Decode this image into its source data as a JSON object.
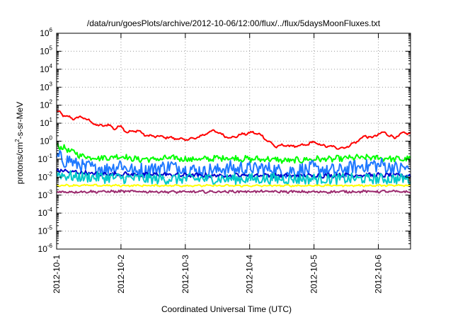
{
  "chart_data": {
    "type": "line",
    "title": "/data/run/goesPlots/archive/2012-10-06/12:00/flux/../flux/5daysMoonFluxes.txt",
    "xlabel": "Coordinated Universal Time (UTC)",
    "ylabel": {
      "base": "protons/cm",
      "sup": "2",
      "rest": "-s-sr-MeV"
    },
    "x_unit": "days since 2012-10-01",
    "xlim": [
      0,
      5.5
    ],
    "x_ticks": [
      {
        "value": 0,
        "label": "2012-10-1"
      },
      {
        "value": 1,
        "label": "2012-10-2"
      },
      {
        "value": 2,
        "label": "2012-10-3"
      },
      {
        "value": 3,
        "label": "2012-10-4"
      },
      {
        "value": 4,
        "label": "2012-10-5"
      },
      {
        "value": 5,
        "label": "2012-10-6"
      }
    ],
    "y_scale": "log",
    "ylim_exp": [
      -6,
      6
    ],
    "y_ticks": [
      {
        "base": "10",
        "exp": "6"
      },
      {
        "base": "10",
        "exp": "5"
      },
      {
        "base": "10",
        "exp": "4"
      },
      {
        "base": "10",
        "exp": "3"
      },
      {
        "base": "10",
        "exp": "2"
      },
      {
        "base": "10",
        "exp": "1"
      },
      {
        "base": "10",
        "exp": "0"
      },
      {
        "base": "10",
        "exp": "-1"
      },
      {
        "base": "10",
        "exp": "-2"
      },
      {
        "base": "10",
        "exp": "-3"
      },
      {
        "base": "10",
        "exp": "-4"
      },
      {
        "base": "10",
        "exp": "-5"
      },
      {
        "base": "10",
        "exp": "-6"
      }
    ],
    "grid": true,
    "series": [
      {
        "color": "#ff0000",
        "noise": 0.05,
        "amp": 0.1,
        "points": [
          [
            0,
            50
          ],
          [
            0.1,
            28
          ],
          [
            0.25,
            18
          ],
          [
            0.4,
            22
          ],
          [
            0.5,
            14
          ],
          [
            0.65,
            7
          ],
          [
            0.8,
            8
          ],
          [
            0.9,
            5
          ],
          [
            1.0,
            7
          ],
          [
            1.1,
            3
          ],
          [
            1.25,
            4
          ],
          [
            1.4,
            2
          ],
          [
            1.6,
            1.8
          ],
          [
            1.8,
            1.5
          ],
          [
            2.0,
            1.2
          ],
          [
            2.2,
            1.6
          ],
          [
            2.35,
            3
          ],
          [
            2.45,
            4
          ],
          [
            2.5,
            3
          ],
          [
            2.7,
            1.5
          ],
          [
            2.9,
            2.5
          ],
          [
            3.05,
            3
          ],
          [
            3.15,
            2.5
          ],
          [
            3.25,
            1.3
          ],
          [
            3.4,
            0.5
          ],
          [
            3.55,
            0.6
          ],
          [
            3.7,
            0.5
          ],
          [
            3.85,
            0.6
          ],
          [
            4.0,
            0.9
          ],
          [
            4.1,
            0.6
          ],
          [
            4.25,
            0.5
          ],
          [
            4.45,
            0.4
          ],
          [
            4.6,
            0.7
          ],
          [
            4.8,
            2
          ],
          [
            4.9,
            1.5
          ],
          [
            5.0,
            2.5
          ],
          [
            5.1,
            3
          ],
          [
            5.25,
            1.5
          ],
          [
            5.35,
            2.5
          ],
          [
            5.5,
            3
          ]
        ]
      },
      {
        "color": "#00ff00",
        "noise": 0.15,
        "amp": 0.1,
        "points": [
          [
            0,
            0.6
          ],
          [
            0.2,
            0.3
          ],
          [
            0.4,
            0.15
          ],
          [
            0.6,
            0.12
          ],
          [
            0.8,
            0.12
          ],
          [
            1.0,
            0.15
          ],
          [
            1.2,
            0.1
          ],
          [
            1.4,
            0.1
          ],
          [
            1.6,
            0.1
          ],
          [
            1.8,
            0.12
          ],
          [
            2.0,
            0.1
          ],
          [
            2.3,
            0.1
          ],
          [
            2.6,
            0.12
          ],
          [
            3.0,
            0.1
          ],
          [
            3.3,
            0.1
          ],
          [
            3.6,
            0.08
          ],
          [
            4.0,
            0.1
          ],
          [
            4.3,
            0.1
          ],
          [
            4.6,
            0.12
          ],
          [
            4.8,
            0.12
          ],
          [
            5.0,
            0.12
          ],
          [
            5.3,
            0.1
          ],
          [
            5.5,
            0.1
          ]
        ]
      },
      {
        "color": "#1e78ff",
        "noise": 0.4,
        "amp": 0.15,
        "points": [
          [
            0,
            0.12
          ],
          [
            0.2,
            0.08
          ],
          [
            0.4,
            0.04
          ],
          [
            0.6,
            0.03
          ],
          [
            0.8,
            0.03
          ],
          [
            1.0,
            0.05
          ],
          [
            1.2,
            0.02
          ],
          [
            1.5,
            0.03
          ],
          [
            1.8,
            0.04
          ],
          [
            2.0,
            0.03
          ],
          [
            2.3,
            0.02
          ],
          [
            2.6,
            0.03
          ],
          [
            3.0,
            0.03
          ],
          [
            3.3,
            0.03
          ],
          [
            3.6,
            0.02
          ],
          [
            4.0,
            0.03
          ],
          [
            4.3,
            0.02
          ],
          [
            4.7,
            0.04
          ],
          [
            5.0,
            0.05
          ],
          [
            5.3,
            0.03
          ],
          [
            5.5,
            0.03
          ]
        ]
      },
      {
        "color": "#0000cc",
        "noise": 0.1,
        "amp": 0.08,
        "points": [
          [
            0,
            0.025
          ],
          [
            0.2,
            0.02
          ],
          [
            0.4,
            0.018
          ],
          [
            0.6,
            0.015
          ],
          [
            1.0,
            0.015
          ],
          [
            1.3,
            0.013
          ],
          [
            1.6,
            0.014
          ],
          [
            2.0,
            0.013
          ],
          [
            2.5,
            0.012
          ],
          [
            3.0,
            0.013
          ],
          [
            3.5,
            0.012
          ],
          [
            4.0,
            0.012
          ],
          [
            4.5,
            0.013
          ],
          [
            5.0,
            0.013
          ],
          [
            5.5,
            0.012
          ]
        ]
      },
      {
        "color": "#00c8c8",
        "noise": 0.3,
        "amp": 0.05,
        "points": [
          [
            0,
            0.015
          ],
          [
            0.3,
            0.01
          ],
          [
            0.6,
            0.01
          ],
          [
            1.0,
            0.009
          ],
          [
            1.5,
            0.008
          ],
          [
            2.0,
            0.008
          ],
          [
            2.5,
            0.008
          ],
          [
            3.0,
            0.008
          ],
          [
            3.5,
            0.008
          ],
          [
            4.0,
            0.008
          ],
          [
            4.5,
            0.008
          ],
          [
            5.0,
            0.008
          ],
          [
            5.5,
            0.008
          ]
        ]
      },
      {
        "color": "#ffff00",
        "noise": 0.04,
        "amp": 0.05,
        "points": [
          [
            0,
            0.0035
          ],
          [
            1.0,
            0.0034
          ],
          [
            2.0,
            0.0034
          ],
          [
            3.0,
            0.0033
          ],
          [
            4.0,
            0.0034
          ],
          [
            5.0,
            0.0034
          ],
          [
            5.5,
            0.0034
          ]
        ]
      },
      {
        "color": "#9b2a6e",
        "noise": 0.06,
        "amp": 0.05,
        "points": [
          [
            0,
            0.0015
          ],
          [
            1.0,
            0.0016
          ],
          [
            2.0,
            0.0015
          ],
          [
            3.0,
            0.0016
          ],
          [
            4.0,
            0.0015
          ],
          [
            5.0,
            0.0016
          ],
          [
            5.5,
            0.0015
          ]
        ]
      }
    ]
  }
}
